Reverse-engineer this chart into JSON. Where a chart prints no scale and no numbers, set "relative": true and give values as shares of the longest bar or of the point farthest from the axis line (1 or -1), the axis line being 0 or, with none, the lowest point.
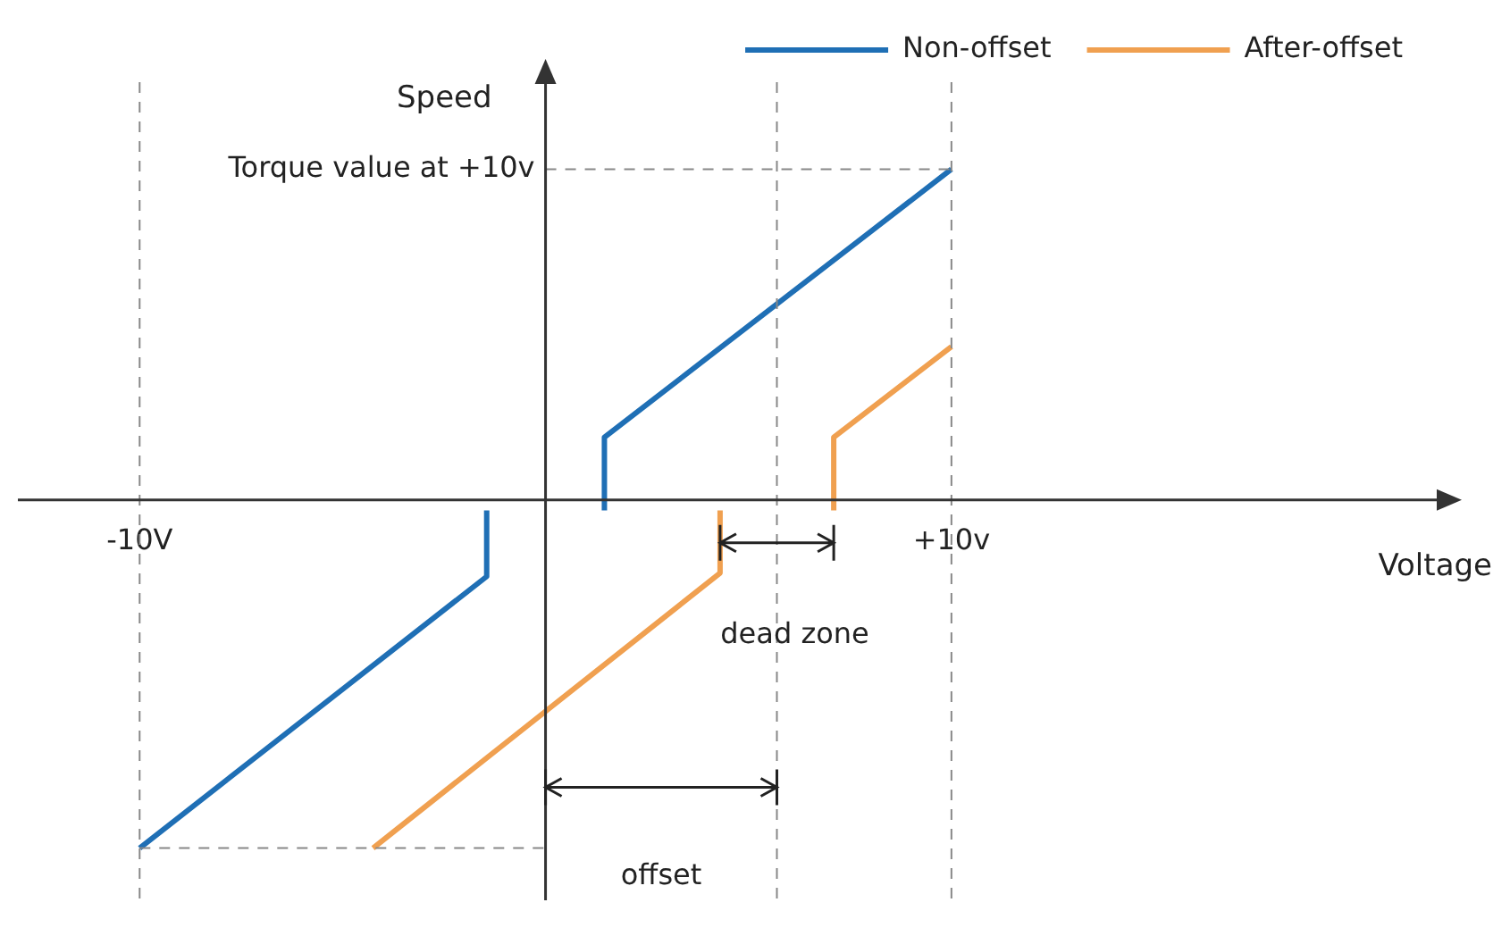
{
  "chart_data": {
    "type": "line",
    "relative": true,
    "xlabel": "Voltage",
    "ylabel": "Speed",
    "xlim": [
      -13,
      22
    ],
    "xticks": [
      {
        "value": -10,
        "label": "-10V"
      },
      {
        "value": 10,
        "label": "+10v"
      }
    ],
    "series": [
      {
        "name": "Non-offset",
        "color": "#1f6fb5",
        "x": [
          -10,
          -1.45,
          -1.45,
          0,
          1.45,
          1.45,
          10
        ],
        "values": [
          -1,
          -0.22,
          -0.03,
          null,
          -0.03,
          0.18,
          0.95
        ]
      },
      {
        "name": "After-offset",
        "color": "#f0a050",
        "x": [
          -4.25,
          4.3,
          4.3,
          5.7,
          7.1,
          7.1,
          10
        ],
        "values": [
          -1,
          -0.21,
          -0.03,
          null,
          -0.03,
          0.18,
          0.44
        ]
      }
    ],
    "ref_lines": [
      {
        "axis": "x",
        "value": -10,
        "color": "#888888",
        "line_style": "dashed"
      },
      {
        "axis": "x",
        "value": 10,
        "color": "#888888",
        "line_style": "dashed"
      },
      {
        "axis": "x",
        "value": 5.7,
        "color": "#888888",
        "line_style": "dashed"
      },
      {
        "axis": "y",
        "value": 0.95,
        "label": "Torque value at +10v",
        "color": "#888888",
        "line_style": "dashed"
      },
      {
        "axis": "y",
        "value": -1,
        "color": "#888888",
        "line_style": "dashed"
      }
    ],
    "annotations": [
      "dead zone",
      "offset"
    ],
    "legend": "top right",
    "grid": false,
    "marker": "none",
    "line_style": "solid"
  }
}
